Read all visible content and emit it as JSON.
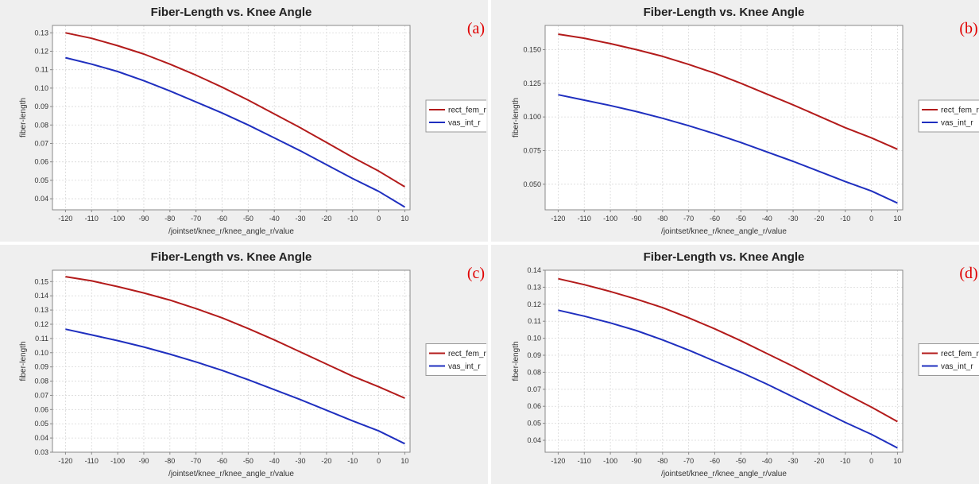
{
  "colors": {
    "rect_fem_r": "#b31b1b",
    "vas_int_r": "#1f2fbf",
    "grid": "#d9d9d9",
    "plot_bg": "#ffffff",
    "panel_tag": "#e00000"
  },
  "chart_data": [
    {
      "type": "line",
      "panel_tag": "(a)",
      "title": "Fiber-Length vs. Knee Angle",
      "xlabel": "/jointset/knee_r/knee_angle_r/value",
      "ylabel": "fiber-length",
      "xlim": [
        -125,
        12
      ],
      "ylim": [
        0.034,
        0.134
      ],
      "xticks": [
        -120,
        -110,
        -100,
        -90,
        -80,
        -70,
        -60,
        -50,
        -40,
        -30,
        -20,
        -10,
        0,
        10
      ],
      "yticks": [
        0.04,
        0.05,
        0.06,
        0.07,
        0.08,
        0.09,
        0.1,
        0.11,
        0.12,
        0.13
      ],
      "ytick_labels": [
        "0.04",
        "0.05",
        "0.06",
        "0.07",
        "0.08",
        "0.09",
        "0.10",
        "0.11",
        "0.12",
        "0.13"
      ],
      "grid": true,
      "legend": "right",
      "x": [
        -120,
        -110,
        -100,
        -90,
        -80,
        -70,
        -60,
        -50,
        -40,
        -30,
        -20,
        -10,
        0,
        10
      ],
      "series": [
        {
          "name": "rect_fem_r",
          "values": [
            0.13,
            0.127,
            0.123,
            0.1185,
            0.113,
            0.107,
            0.1005,
            0.0935,
            0.086,
            0.0785,
            0.0705,
            0.0625,
            0.055,
            0.0465
          ]
        },
        {
          "name": "vas_int_r",
          "values": [
            0.1165,
            0.113,
            0.109,
            0.104,
            0.0985,
            0.0925,
            0.0865,
            0.08,
            0.073,
            0.066,
            0.0585,
            0.051,
            0.044,
            0.0355
          ]
        }
      ]
    },
    {
      "type": "line",
      "panel_tag": "(b)",
      "title": "Fiber-Length vs. Knee Angle",
      "xlabel": "/jointset/knee_r/knee_angle_r/value",
      "ylabel": "fiber-length",
      "xlim": [
        -125,
        12
      ],
      "ylim": [
        0.031,
        0.168
      ],
      "xticks": [
        -120,
        -110,
        -100,
        -90,
        -80,
        -70,
        -60,
        -50,
        -40,
        -30,
        -20,
        -10,
        0,
        10
      ],
      "yticks": [
        0.05,
        0.075,
        0.1,
        0.125,
        0.15
      ],
      "ytick_labels": [
        "0.050",
        "0.075",
        "0.100",
        "0.125",
        "0.150"
      ],
      "grid": true,
      "legend": "right",
      "x": [
        -120,
        -110,
        -100,
        -90,
        -80,
        -70,
        -60,
        -50,
        -40,
        -30,
        -20,
        -10,
        0,
        10
      ],
      "series": [
        {
          "name": "rect_fem_r",
          "values": [
            0.1615,
            0.1585,
            0.1545,
            0.15,
            0.145,
            0.139,
            0.1325,
            0.125,
            0.117,
            0.109,
            0.1005,
            0.092,
            0.0845,
            0.076
          ]
        },
        {
          "name": "vas_int_r",
          "values": [
            0.1165,
            0.1125,
            0.1085,
            0.104,
            0.099,
            0.0935,
            0.0875,
            0.081,
            0.074,
            0.067,
            0.0595,
            0.052,
            0.045,
            0.036
          ]
        }
      ]
    },
    {
      "type": "line",
      "panel_tag": "(c)",
      "title": "Fiber-Length vs. Knee Angle",
      "xlabel": "/jointset/knee_r/knee_angle_r/value",
      "ylabel": "fiber-length",
      "xlim": [
        -125,
        12
      ],
      "ylim": [
        0.03,
        0.158
      ],
      "xticks": [
        -120,
        -110,
        -100,
        -90,
        -80,
        -70,
        -60,
        -50,
        -40,
        -30,
        -20,
        -10,
        0,
        10
      ],
      "yticks": [
        0.03,
        0.04,
        0.05,
        0.06,
        0.07,
        0.08,
        0.09,
        0.1,
        0.11,
        0.12,
        0.13,
        0.14,
        0.15
      ],
      "ytick_labels": [
        "0.03",
        "0.04",
        "0.05",
        "0.06",
        "0.07",
        "0.08",
        "0.09",
        "0.10",
        "0.11",
        "0.12",
        "0.13",
        "0.14",
        "0.15"
      ],
      "grid": true,
      "legend": "right",
      "x": [
        -120,
        -110,
        -100,
        -90,
        -80,
        -70,
        -60,
        -50,
        -40,
        -30,
        -20,
        -10,
        0,
        10
      ],
      "series": [
        {
          "name": "rect_fem_r",
          "values": [
            0.1535,
            0.1505,
            0.1465,
            0.142,
            0.137,
            0.131,
            0.1245,
            0.117,
            0.109,
            0.1005,
            0.092,
            0.0835,
            0.076,
            0.068
          ]
        },
        {
          "name": "vas_int_r",
          "values": [
            0.1165,
            0.1125,
            0.1085,
            0.104,
            0.099,
            0.0935,
            0.0875,
            0.081,
            0.074,
            0.067,
            0.0595,
            0.052,
            0.045,
            0.036
          ]
        }
      ]
    },
    {
      "type": "line",
      "panel_tag": "(d)",
      "title": "Fiber-Length vs. Knee Angle",
      "xlabel": "/jointset/knee_r/knee_angle_r/value",
      "ylabel": "fiber-length",
      "xlim": [
        -125,
        12
      ],
      "ylim": [
        0.033,
        0.14
      ],
      "xticks": [
        -120,
        -110,
        -100,
        -90,
        -80,
        -70,
        -60,
        -50,
        -40,
        -30,
        -20,
        -10,
        0,
        10
      ],
      "yticks": [
        0.04,
        0.05,
        0.06,
        0.07,
        0.08,
        0.09,
        0.1,
        0.11,
        0.12,
        0.13,
        0.14
      ],
      "ytick_labels": [
        "0.04",
        "0.05",
        "0.06",
        "0.07",
        "0.08",
        "0.09",
        "0.10",
        "0.11",
        "0.12",
        "0.13",
        "0.14"
      ],
      "grid": true,
      "legend": "right",
      "x": [
        -120,
        -110,
        -100,
        -90,
        -80,
        -70,
        -60,
        -50,
        -40,
        -30,
        -20,
        -10,
        0,
        10
      ],
      "series": [
        {
          "name": "rect_fem_r",
          "values": [
            0.135,
            0.1315,
            0.1275,
            0.123,
            0.118,
            0.112,
            0.1055,
            0.0985,
            0.091,
            0.0835,
            0.0755,
            0.0675,
            0.0595,
            0.051
          ]
        },
        {
          "name": "vas_int_r",
          "values": [
            0.1165,
            0.113,
            0.109,
            0.1045,
            0.099,
            0.093,
            0.0865,
            0.08,
            0.073,
            0.0655,
            0.058,
            0.0505,
            0.0435,
            0.0355
          ]
        }
      ]
    }
  ]
}
